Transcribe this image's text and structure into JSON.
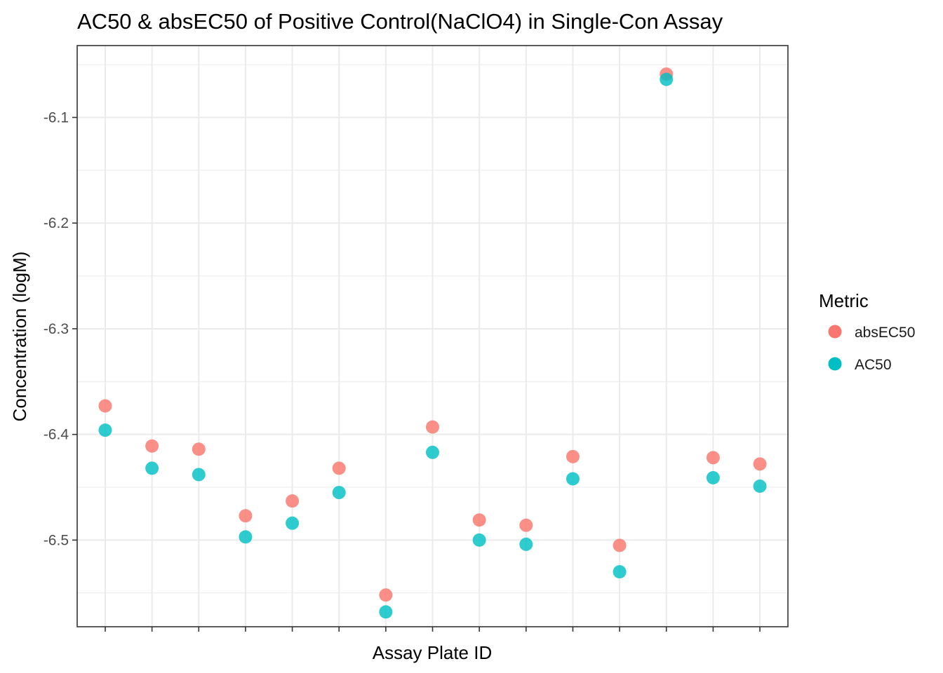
{
  "chart_data": {
    "type": "scatter",
    "title": "AC50 & absEC50 of Positive Control(NaClO4) in Single-Con Assay",
    "xlabel": "Assay Plate ID",
    "ylabel": "Concentration (logM)",
    "x": [
      1,
      2,
      3,
      4,
      5,
      6,
      7,
      8,
      9,
      10,
      11,
      12,
      13,
      14,
      15
    ],
    "x_tick_labels": [
      "",
      "",
      "",
      "",
      "",
      "",
      "",
      "",
      "",
      "",
      "",
      "",
      "",
      "",
      ""
    ],
    "ylim": [
      -6.582,
      -6.032
    ],
    "y_ticks": [
      -6.1,
      -6.2,
      -6.3,
      -6.4,
      -6.5
    ],
    "y_tick_labels": [
      "-6.1",
      "-6.2",
      "-6.3",
      "-6.4",
      "-6.5"
    ],
    "grid": true,
    "legend_title": "Metric",
    "legend_position": "right",
    "series": [
      {
        "name": "absEC50",
        "color": "#F8766D",
        "values": [
          -6.373,
          -6.411,
          -6.414,
          -6.477,
          -6.463,
          -6.432,
          -6.552,
          -6.393,
          -6.481,
          -6.486,
          -6.421,
          -6.505,
          -6.059,
          -6.422,
          -6.428
        ]
      },
      {
        "name": "AC50",
        "color": "#00BFC4",
        "values": [
          -6.396,
          -6.432,
          -6.438,
          -6.497,
          -6.484,
          -6.455,
          -6.568,
          -6.417,
          -6.5,
          -6.504,
          -6.442,
          -6.53,
          -6.064,
          -6.441,
          -6.449
        ]
      }
    ]
  }
}
